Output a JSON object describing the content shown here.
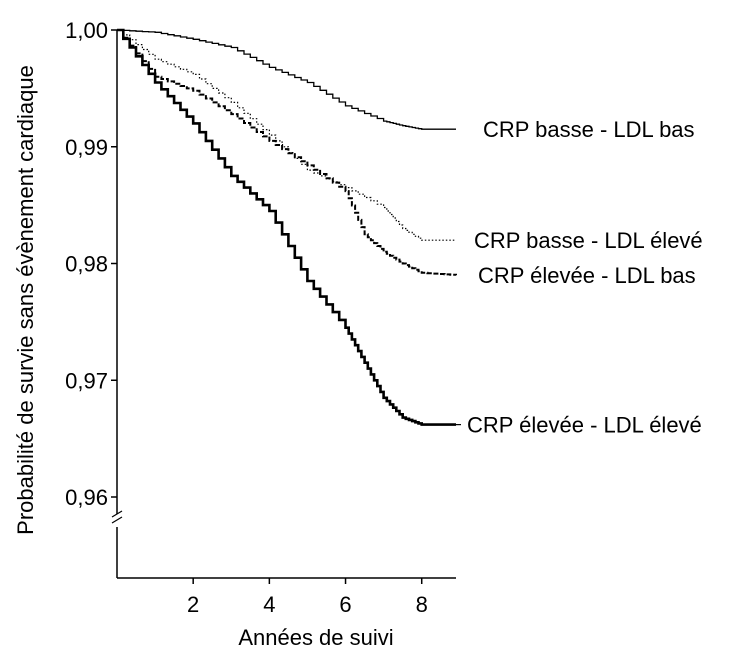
{
  "chart_data": {
    "type": "line",
    "title": "",
    "xlabel": "Années de suivi",
    "ylabel": "Probabilité de survie sans évènement cardiaque",
    "xlim": [
      0,
      8.9
    ],
    "ylim": [
      0.955,
      1.0
    ],
    "x_ticks": [
      2,
      4,
      6,
      8
    ],
    "y_ticks": [
      {
        "value": 1.0,
        "label": "1,00"
      },
      {
        "value": 0.99,
        "label": "0,99"
      },
      {
        "value": 0.98,
        "label": "0,98"
      },
      {
        "value": 0.97,
        "label": "0,97"
      },
      {
        "value": 0.96,
        "label": "0,96"
      }
    ],
    "y_axis_break": true,
    "grid": false,
    "legend": "direct labels at right end of each curve",
    "series": [
      {
        "name": "CRP basse - LDL bas",
        "style": "solid-thin",
        "color": "#000000",
        "points": [
          [
            0,
            1.0
          ],
          [
            1,
            0.9998
          ],
          [
            2,
            0.9992
          ],
          [
            3,
            0.9985
          ],
          [
            4,
            0.9968
          ],
          [
            5,
            0.9955
          ],
          [
            6,
            0.9935
          ],
          [
            7,
            0.9922
          ],
          [
            7.5,
            0.9918
          ],
          [
            8,
            0.9915
          ],
          [
            8.9,
            0.9915
          ]
        ]
      },
      {
        "name": "CRP basse - LDL élevé",
        "style": "dotted",
        "color": "#000000",
        "points": [
          [
            0,
            1.0
          ],
          [
            1,
            0.9975
          ],
          [
            2,
            0.9962
          ],
          [
            3,
            0.9938
          ],
          [
            4,
            0.991
          ],
          [
            5,
            0.988
          ],
          [
            6,
            0.9865
          ],
          [
            7,
            0.9848
          ],
          [
            7.5,
            0.983
          ],
          [
            8,
            0.982
          ],
          [
            8.9,
            0.982
          ]
        ]
      },
      {
        "name": "CRP élevée - LDL bas",
        "style": "dashed",
        "color": "#000000",
        "points": [
          [
            0,
            1.0
          ],
          [
            1,
            0.996
          ],
          [
            2,
            0.9948
          ],
          [
            3,
            0.9928
          ],
          [
            4,
            0.9905
          ],
          [
            5,
            0.9884
          ],
          [
            6,
            0.9862
          ],
          [
            6.5,
            0.9825
          ],
          [
            7,
            0.981
          ],
          [
            7.5,
            0.98
          ],
          [
            8,
            0.9792
          ],
          [
            8.9,
            0.979
          ]
        ]
      },
      {
        "name": "CRP élevée - LDL élevé",
        "style": "solid-thick",
        "color": "#000000",
        "points": [
          [
            0,
            1.0
          ],
          [
            1,
            0.9955
          ],
          [
            2,
            0.992
          ],
          [
            3,
            0.9875
          ],
          [
            4,
            0.9845
          ],
          [
            5,
            0.9785
          ],
          [
            6,
            0.9745
          ],
          [
            6.5,
            0.9715
          ],
          [
            7,
            0.9685
          ],
          [
            7.5,
            0.9668
          ],
          [
            8,
            0.9662
          ],
          [
            8.9,
            0.9662
          ]
        ]
      }
    ]
  }
}
